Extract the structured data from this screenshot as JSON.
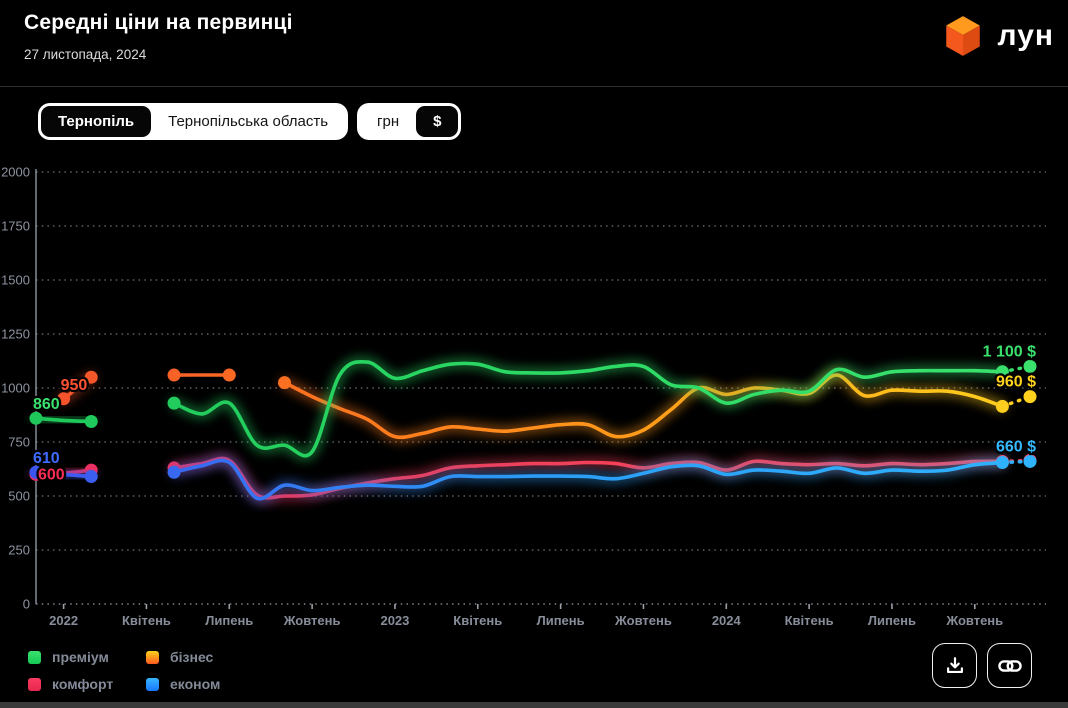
{
  "header": {
    "title": "Середні ціни на первинці",
    "date": "27 листопада, 2024",
    "logo_text": "лун"
  },
  "controls": {
    "region_toggle": {
      "options": [
        "Тернопіль",
        "Тернопільська область"
      ],
      "selected": "Тернопіль"
    },
    "currency_toggle": {
      "options": [
        "грн",
        "$"
      ],
      "selected": "$"
    }
  },
  "chart_data": {
    "type": "line",
    "currency_unit": "$",
    "y_axis": {
      "min": 0,
      "max": 2000,
      "step": 250,
      "tick_labels": [
        "0",
        "250",
        "500",
        "750",
        "1000",
        "1250",
        "1500",
        "1750",
        "2000"
      ]
    },
    "x_months_total": 37,
    "x_ticks": [
      {
        "label": "2022",
        "i": 1
      },
      {
        "label": "Квітень",
        "i": 4
      },
      {
        "label": "Липень",
        "i": 7
      },
      {
        "label": "Жовтень",
        "i": 10
      },
      {
        "label": "2023",
        "i": 13
      },
      {
        "label": "Квітень",
        "i": 16
      },
      {
        "label": "Липень",
        "i": 19
      },
      {
        "label": "Жовтень",
        "i": 22
      },
      {
        "label": "2024",
        "i": 25
      },
      {
        "label": "Квітень",
        "i": 28
      },
      {
        "label": "Липень",
        "i": 31
      },
      {
        "label": "Жовтень",
        "i": 34
      }
    ],
    "grid": "dotted-horizontal",
    "note": "series values are monthly $/m2, index 0 = Dec 2021, index 36 = current (27 Nov 2024, dashed projection); nulls = no data (war gap)",
    "series": [
      {
        "key": "business",
        "name": "бізнес",
        "gradient": [
          "#f4502c",
          "#ff7a1e",
          "#ffa319",
          "#ffd21e"
        ],
        "start_label": {
          "text": "950",
          "color": "#ff5233"
        },
        "end_label": {
          "text": "960 $",
          "color": "#ffd21e"
        },
        "values": [
          null,
          950,
          1050,
          null,
          null,
          1060,
          1060,
          1060,
          null,
          1025,
          960,
          905,
          855,
          775,
          790,
          820,
          810,
          800,
          815,
          830,
          830,
          775,
          805,
          900,
          1000,
          970,
          1000,
          990,
          975,
          1060,
          965,
          990,
          985,
          985,
          960,
          915,
          960
        ]
      },
      {
        "key": "premium",
        "name": "преміум",
        "gradient": [
          "#1fc75a",
          "#2bd964",
          "#3ae26d"
        ],
        "start_label": {
          "text": "860",
          "color": "#3ae26d"
        },
        "end_label": {
          "text": "1 100 $",
          "color": "#3ae26d"
        },
        "values": [
          860,
          850,
          845,
          null,
          null,
          930,
          880,
          930,
          735,
          735,
          705,
          1060,
          1120,
          1045,
          1080,
          1110,
          1110,
          1075,
          1070,
          1070,
          1080,
          1100,
          1100,
          1015,
          1000,
          930,
          970,
          990,
          985,
          1085,
          1050,
          1075,
          1080,
          1080,
          1080,
          1075,
          1100
        ]
      },
      {
        "key": "comfort",
        "name": "комфорт",
        "gradient": [
          "#e92e63",
          "#f73e56",
          "#fb4a62"
        ],
        "start_label": {
          "text": "600",
          "color": "#fb2d55"
        },
        "end_label": null,
        "values": [
          600,
          605,
          620,
          null,
          null,
          630,
          650,
          665,
          505,
          500,
          505,
          535,
          560,
          580,
          595,
          630,
          640,
          645,
          650,
          650,
          655,
          650,
          630,
          650,
          655,
          620,
          660,
          650,
          645,
          650,
          640,
          650,
          645,
          650,
          660,
          660,
          665
        ]
      },
      {
        "key": "econom",
        "name": "економ",
        "gradient": [
          "#3d55f0",
          "#2b9cf5",
          "#2fb3ff"
        ],
        "start_label": {
          "text": "610",
          "color": "#3f6bff"
        },
        "end_label": {
          "text": "660 $",
          "color": "#38b9ff"
        },
        "values": [
          610,
          600,
          590,
          null,
          null,
          610,
          640,
          655,
          490,
          550,
          525,
          540,
          550,
          545,
          545,
          590,
          590,
          590,
          592,
          592,
          590,
          580,
          605,
          635,
          640,
          600,
          620,
          615,
          605,
          630,
          605,
          620,
          615,
          620,
          645,
          655,
          660
        ]
      }
    ],
    "legend": [
      {
        "label": "преміум",
        "colors": [
          "#3ae26d",
          "#14c853"
        ]
      },
      {
        "label": "бізнес",
        "colors": [
          "#ffd21e",
          "#ff5a1e"
        ]
      },
      {
        "label": "комфорт",
        "colors": [
          "#fb3b60",
          "#e7284f"
        ]
      },
      {
        "label": "економ",
        "colors": [
          "#38b6ff",
          "#1877ff"
        ]
      }
    ]
  },
  "actions": {
    "download": "download-chart",
    "share": "copy-link"
  }
}
